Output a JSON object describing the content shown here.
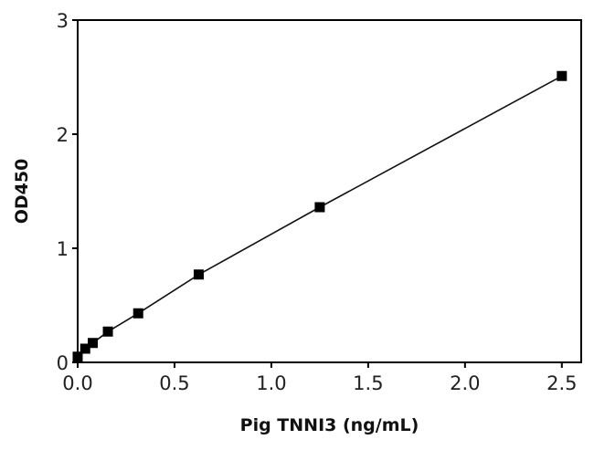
{
  "chart_data": {
    "type": "scatter",
    "title": "",
    "xlabel": "Pig TNNI3 (ng/mL)",
    "ylabel": "OD450",
    "xlim": [
      0,
      2.6
    ],
    "ylim": [
      0,
      3
    ],
    "xticks": [
      0.0,
      0.5,
      1.0,
      1.5,
      2.0,
      2.5
    ],
    "xtick_labels": [
      "0.0",
      "0.5",
      "1.0",
      "1.5",
      "2.0",
      "2.5"
    ],
    "yticks": [
      0,
      1,
      2,
      3
    ],
    "ytick_labels": [
      "0",
      "1",
      "2",
      "3"
    ],
    "grid": false,
    "series": [
      {
        "x": [
          0,
          0.039,
          0.078,
          0.156,
          0.3125,
          0.625,
          1.25,
          2.5
        ],
        "y": [
          0.05,
          0.12,
          0.17,
          0.27,
          0.43,
          0.77,
          1.36,
          2.51
        ],
        "marker": "square",
        "color": "#000000",
        "fit_line": true
      }
    ]
  }
}
